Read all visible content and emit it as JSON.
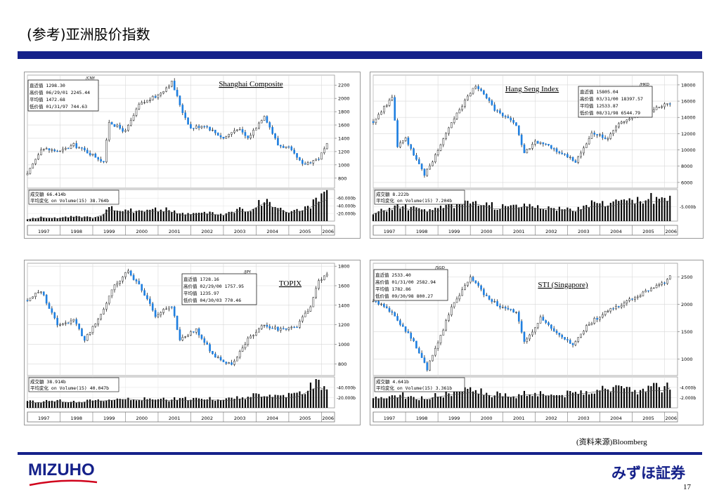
{
  "page": {
    "title": "(参考)亚洲股价指数",
    "source": "(资料来源)Bloomberg",
    "page_number": "17",
    "logo_left": "MIZUHO",
    "logo_right": "みずほ証券"
  },
  "colors": {
    "accent": "#15218a",
    "up": "#ffffff",
    "down": "#1e7fe0",
    "wick": "#000000",
    "bar": "#000000"
  },
  "chart_data": [
    {
      "type": "candlestick",
      "title": "Shanghai Composite",
      "currency": "/CNY",
      "stats": [
        [
          "直近值",
          "1298.30"
        ],
        [
          "高价值",
          "06/29/01 2245.44"
        ],
        [
          "平均值",
          "1472.68"
        ],
        [
          "低价值",
          "01/31/97 744.63"
        ]
      ],
      "volume_labels": [
        "成交額 66.414b",
        "平均変化 on Volume(15) 38.764b"
      ],
      "years": [
        "1997",
        "1998",
        "1999",
        "2000",
        "2001",
        "2002",
        "2003",
        "2004",
        "2005",
        "2006"
      ],
      "yticks": [
        800,
        1000,
        1200,
        1400,
        1600,
        1800,
        2000,
        2200
      ],
      "ylim": [
        650,
        2350
      ],
      "vol_ticks": [
        "60.000b",
        "40.000b",
        "20.000b"
      ],
      "vol_ticks_values": [
        60,
        40,
        20
      ],
      "vol_max": 75,
      "x": [
        "1997-01",
        "1997-06",
        "1998-01",
        "1998-06",
        "1999-01",
        "1999-05",
        "1999-07",
        "2000-01",
        "2000-06",
        "2001-01",
        "2001-06",
        "2001-10",
        "2002-01",
        "2002-06",
        "2003-01",
        "2003-06",
        "2003-10",
        "2004-04",
        "2004-09",
        "2005-01",
        "2005-06",
        "2005-12",
        "2006-03"
      ],
      "values": [
        850,
        1250,
        1200,
        1300,
        1150,
        1050,
        1650,
        1500,
        1900,
        2050,
        2245,
        1800,
        1550,
        1600,
        1400,
        1550,
        1400,
        1750,
        1300,
        1250,
        1000,
        1100,
        1298
      ],
      "volume": [
        5,
        10,
        8,
        12,
        9,
        20,
        35,
        25,
        30,
        30,
        28,
        18,
        20,
        22,
        18,
        30,
        28,
        55,
        35,
        25,
        30,
        55,
        66
      ]
    },
    {
      "type": "candlestick",
      "title": "Hang Seng Index",
      "currency": "/HKD",
      "stats": [
        [
          "直近值",
          "15805.04"
        ],
        [
          "高价值",
          "03/31/00 18397.57"
        ],
        [
          "平均值",
          "12533.87"
        ],
        [
          "低价值",
          "08/31/98 6544.79"
        ]
      ],
      "volume_labels": [
        "成交額 8.222b",
        "平均変化 on Volume(15) 7.204b"
      ],
      "years": [
        "1997",
        "1998",
        "1999",
        "2000",
        "2001",
        "2002",
        "2003",
        "2004",
        "2005",
        "2006"
      ],
      "yticks": [
        6000,
        8000,
        10000,
        12000,
        14000,
        16000,
        18000
      ],
      "ylim": [
        5300,
        19200
      ],
      "vol_ticks": [
        "5.000b"
      ],
      "vol_ticks_values": [
        5
      ],
      "vol_max": 10,
      "x": [
        "1997-01",
        "1997-08",
        "1997-10",
        "1998-01",
        "1998-08",
        "1999-01",
        "1999-06",
        "2000-01",
        "2000-03",
        "2000-10",
        "2001-06",
        "2001-09",
        "2002-01",
        "2002-06",
        "2003-04",
        "2003-10",
        "2004-04",
        "2004-09",
        "2005-01",
        "2005-06",
        "2006-01",
        "2006-03"
      ],
      "values": [
        13500,
        16500,
        10500,
        11500,
        6800,
        10000,
        13500,
        17000,
        18000,
        15000,
        13000,
        9500,
        11000,
        10500,
        8600,
        12000,
        11500,
        13500,
        14000,
        14500,
        15500,
        15805
      ],
      "volume": [
        3,
        5,
        6,
        5,
        4,
        4,
        6,
        6,
        7,
        5,
        5,
        6,
        5,
        5,
        4,
        6,
        6,
        7,
        7,
        8,
        8,
        8.2
      ]
    },
    {
      "type": "candlestick",
      "title": "TOPIX",
      "currency": "/JPY",
      "stats": [
        [
          "直近值",
          "1728.16"
        ],
        [
          "高价值",
          "02/29/00 1757.95"
        ],
        [
          "平均值",
          "1235.97"
        ],
        [
          "低价值",
          "04/30/03 770.46"
        ]
      ],
      "volume_labels": [
        "成交額 38.914b",
        "平均変化 on Volume(15) 40.047b"
      ],
      "years": [
        "1997",
        "1998",
        "1999",
        "2000",
        "2001",
        "2002",
        "2003",
        "2004",
        "2005",
        "2006"
      ],
      "yticks": [
        800,
        1000,
        1200,
        1400,
        1600,
        1800
      ],
      "ylim": [
        680,
        1830
      ],
      "vol_ticks": [
        "40.000b",
        "20.000b"
      ],
      "vol_ticks_values": [
        40,
        20
      ],
      "vol_max": 55,
      "x": [
        "1997-01",
        "1997-06",
        "1997-12",
        "1998-06",
        "1998-10",
        "1999-03",
        "1999-09",
        "2000-02",
        "2000-06",
        "2000-12",
        "2001-06",
        "2001-09",
        "2002-03",
        "2002-09",
        "2003-04",
        "2003-10",
        "2004-04",
        "2004-09",
        "2005-04",
        "2005-09",
        "2005-12",
        "2006-03"
      ],
      "values": [
        1450,
        1550,
        1200,
        1250,
        1050,
        1250,
        1600,
        1750,
        1600,
        1300,
        1400,
        1050,
        1150,
        900,
        780,
        1050,
        1200,
        1150,
        1180,
        1400,
        1650,
        1728
      ],
      "volume": [
        12,
        12,
        14,
        12,
        13,
        15,
        18,
        20,
        18,
        16,
        17,
        18,
        16,
        18,
        17,
        22,
        25,
        22,
        25,
        40,
        48,
        39
      ]
    },
    {
      "type": "candlestick",
      "title": "STI (Singapore)",
      "currency": "/SGD",
      "stats": [
        [
          "直近值",
          "2533.40"
        ],
        [
          "高价值",
          "01/31/00 2582.94"
        ],
        [
          "平均值",
          "1782.86"
        ],
        [
          "低价值",
          "09/30/98 800.27"
        ]
      ],
      "volume_labels": [
        "成交額 4.641b",
        "平均変化 on Volume(15) 3.361b"
      ],
      "years": [
        "1997",
        "1998",
        "1999",
        "2000",
        "2001",
        "2002",
        "2003",
        "2004",
        "2005",
        "2006"
      ],
      "yticks": [
        1000,
        1500,
        2000,
        2500
      ],
      "ylim": [
        700,
        2750
      ],
      "vol_ticks": [
        "4.000b",
        "2.000b"
      ],
      "vol_ticks_values": [
        4,
        2
      ],
      "vol_max": 5.5,
      "x": [
        "1997-01",
        "1997-06",
        "1997-12",
        "1998-03",
        "1998-09",
        "1999-01",
        "1999-06",
        "2000-01",
        "2000-06",
        "2000-12",
        "2001-06",
        "2001-09",
        "2002-03",
        "2002-09",
        "2003-03",
        "2003-09",
        "2004-03",
        "2004-09",
        "2005-03",
        "2005-09",
        "2006-01",
        "2006-03"
      ],
      "values": [
        2050,
        1950,
        1600,
        1400,
        820,
        1300,
        1950,
        2500,
        2200,
        1950,
        1850,
        1300,
        1750,
        1450,
        1250,
        1650,
        1850,
        2000,
        2150,
        2300,
        2400,
        2533
      ],
      "volume": [
        2,
        2,
        2.5,
        2,
        2,
        2.5,
        3,
        3.5,
        3,
        2.5,
        2.5,
        3,
        3,
        2.5,
        3,
        3.5,
        4,
        3.5,
        3.5,
        4,
        4,
        4.6
      ]
    }
  ]
}
